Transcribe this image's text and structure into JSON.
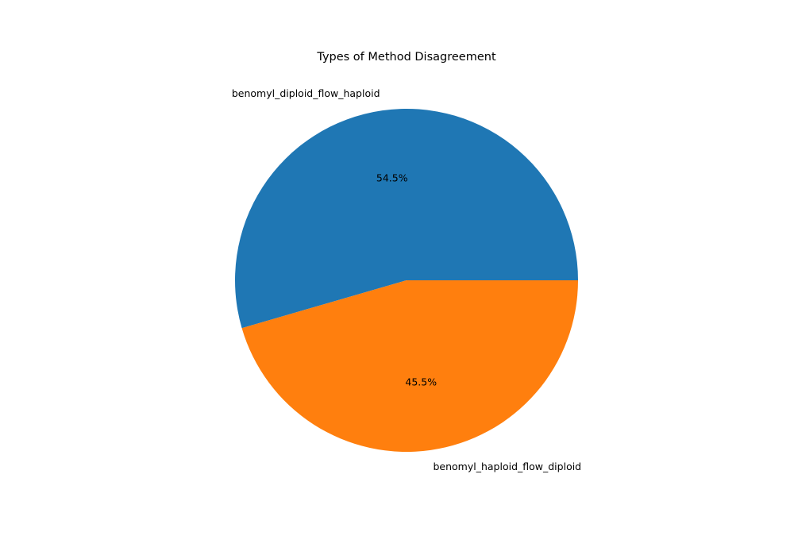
{
  "chart_data": {
    "type": "pie",
    "title": "Types of Method Disagreement",
    "categories": [
      "benomyl_diploid_flow_haploid",
      "benomyl_haploid_flow_diploid"
    ],
    "values": [
      54.5,
      45.5
    ],
    "percent_labels": [
      "54.5%",
      "45.5%"
    ],
    "colors": [
      "#1f77b4",
      "#ff7f0e"
    ],
    "start_angle": 0,
    "direction": "counterclockwise",
    "legend": "none"
  }
}
